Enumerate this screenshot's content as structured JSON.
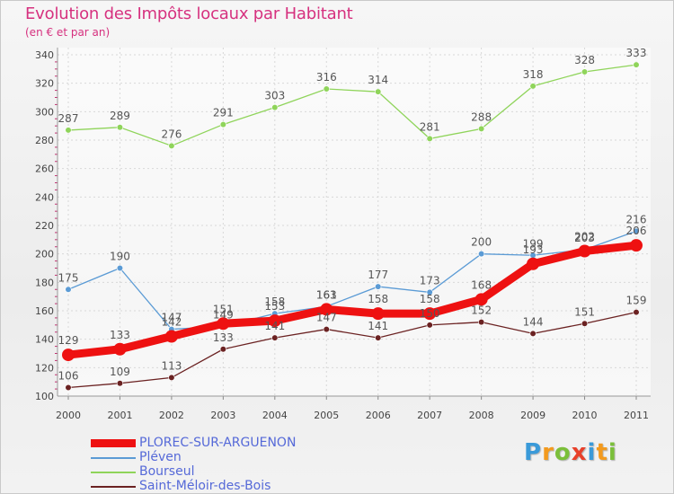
{
  "title": "Evolution des Impôts locaux par Habitant",
  "subtitle": "(en € et par an)",
  "logo": {
    "text": "Proxiti",
    "letters": [
      {
        "char": "P",
        "color": "#3a9ad9"
      },
      {
        "char": "r",
        "color": "#f39a1e"
      },
      {
        "char": "o",
        "color": "#7bbf3a"
      },
      {
        "char": "x",
        "color": "#e8402a"
      },
      {
        "char": "i",
        "color": "#3a9ad9"
      },
      {
        "char": "t",
        "color": "#f39a1e"
      },
      {
        "char": "i",
        "color": "#7bbf3a"
      }
    ]
  },
  "chart_data": {
    "type": "line",
    "title": "Evolution des Impôts locaux par Habitant",
    "subtitle": "(en € et par an)",
    "xlabel": "",
    "ylabel": "",
    "x": [
      "2000",
      "2001",
      "2002",
      "2003",
      "2004",
      "2005",
      "2006",
      "2007",
      "2008",
      "2009",
      "2010",
      "2011"
    ],
    "ylim": [
      100,
      340
    ],
    "yticks": [
      "100",
      "120",
      "140",
      "160",
      "180",
      "200",
      "220",
      "240",
      "260",
      "280",
      "300",
      "320",
      "340"
    ],
    "grid": true,
    "legend_position": "bottom-left",
    "series": [
      {
        "name": "PLOREC-SUR-ARGUENON",
        "color": "#ee1111",
        "values": [
          129,
          133,
          142,
          151,
          153,
          161,
          158,
          158,
          168,
          193,
          202,
          206
        ],
        "labels": [
          "129",
          "133",
          "142",
          "151",
          "153",
          "161",
          "158",
          "158",
          "168",
          "193",
          "202",
          "206"
        ],
        "emphasis": true
      },
      {
        "name": "Pléven",
        "color": "#5b9bd5",
        "values": [
          175,
          190,
          147,
          149,
          158,
          163,
          177,
          173,
          200,
          199,
          203,
          216
        ],
        "labels": [
          "175",
          "190",
          "147",
          "149",
          "158",
          "163",
          "177",
          "173",
          "200",
          "199",
          "203",
          "216"
        ],
        "emphasis": false
      },
      {
        "name": "Bourseul",
        "color": "#8fd45a",
        "values": [
          287,
          289,
          276,
          291,
          303,
          316,
          314,
          281,
          288,
          318,
          328,
          333
        ],
        "labels": [
          "287",
          "289",
          "276",
          "291",
          "303",
          "316",
          "314",
          "281",
          "288",
          "318",
          "328",
          "333"
        ],
        "emphasis": false
      },
      {
        "name": "Saint-Méloir-des-Bois",
        "color": "#6b2222",
        "values": [
          106,
          109,
          113,
          133,
          141,
          147,
          141,
          150,
          152,
          144,
          151,
          159
        ],
        "labels": [
          "106",
          "109",
          "113",
          "133",
          "141",
          "147",
          "141",
          "150",
          "152",
          "144",
          "151",
          "159"
        ],
        "emphasis": false
      }
    ]
  }
}
